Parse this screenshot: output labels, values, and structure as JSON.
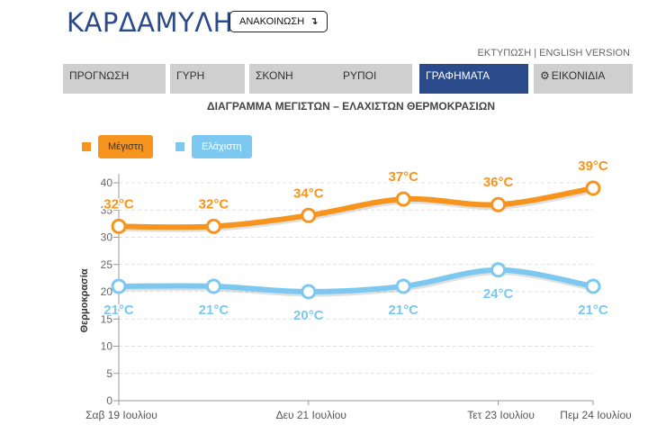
{
  "header": {
    "title": "ΚΑΡΔΑΜΥΛΗ",
    "announce_label": "ΑΝΑΚΟΙΝΩΣΗ",
    "announce_icon": "arrow-down-icon"
  },
  "toplinks": {
    "print": "ΕΚΤΥΠΩΣΗ",
    "separator": " | ",
    "english": "ENGLISH VERSION"
  },
  "tabs": [
    {
      "label": "ΠΡΟΓΝΩΣΗ"
    },
    {
      "label": "ΓΥΡΗ"
    },
    {
      "label": "ΣΚΟΝΗ"
    },
    {
      "label": "ΡΥΠΟΙ"
    },
    {
      "label": "ΓΡΑΦΗΜΑΤΑ",
      "active": true
    },
    {
      "label": "ΕΙΚΟΝΙΔΙΑ",
      "icon": "gear-icon"
    }
  ],
  "colors": {
    "max": "#f7941d",
    "min": "#7cc8f0",
    "accent": "#2a4a8a"
  },
  "chart_data": {
    "type": "line",
    "title": "ΔΙΑΓΡΑΜΜΑ ΜΕΓΙΣΤΩΝ – ΕΛΑΧΙΣΤΩΝ ΘΕΡΜΟΚΡΑΣΙΩΝ",
    "ylabel": "Θερμοκρασία",
    "xlabel": "",
    "ylim": [
      0,
      40
    ],
    "yticks": [
      0,
      5,
      10,
      15,
      20,
      25,
      30,
      35,
      40
    ],
    "x_tick_labels": [
      {
        "label": "Σαβ 19 Ιουλίου",
        "index": 0
      },
      {
        "label": "Δευ 21 Ιουλίου",
        "index": 2
      },
      {
        "label": "Τετ 23 Ιουλίου",
        "index": 4
      },
      {
        "label": "Πεμ 24 Ιουλίου",
        "index": 5
      }
    ],
    "grid": true,
    "legend_position": "top-left",
    "series": [
      {
        "name": "Μέγιστη",
        "key": "max",
        "values": [
          32,
          32,
          34,
          37,
          36,
          39
        ],
        "labels": [
          "32°C",
          "32°C",
          "34°C",
          "37°C",
          "36°C",
          "39°C"
        ]
      },
      {
        "name": "Ελάχιστη",
        "key": "min",
        "values": [
          21,
          21,
          20,
          21,
          24,
          21
        ],
        "labels": [
          "21°C",
          "21°C",
          "20°C",
          "21°C",
          "24°C",
          "21°C"
        ]
      }
    ]
  }
}
